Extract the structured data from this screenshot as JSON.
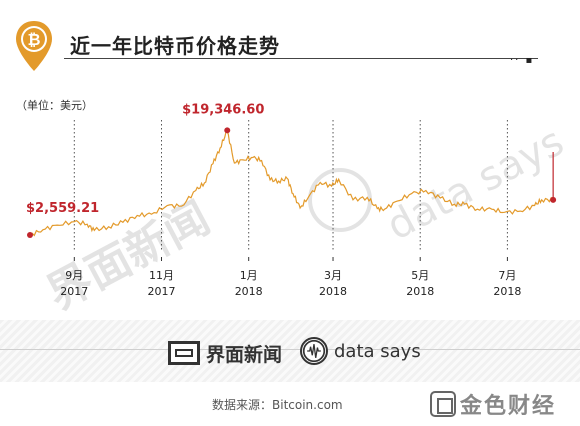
{
  "header": {
    "title": "近一年比特币价格走势",
    "unit_label": "（单位：美元）",
    "icon": "bitcoin-pin-icon",
    "accent_color": "#e39a2b"
  },
  "chart_data": {
    "type": "line",
    "title": "近一年比特币价格走势",
    "xlabel": "",
    "ylabel": "",
    "ylim": [
      0,
      21000
    ],
    "grid": "vertical dotted lines at labeled months",
    "line_color": "#e39a2b",
    "marker_color": "#c0262d",
    "x_ticks": [
      {
        "month": "9月",
        "year": "2017"
      },
      {
        "month": "11月",
        "year": "2017"
      },
      {
        "month": "1月",
        "year": "2018"
      },
      {
        "month": "3月",
        "year": "2018"
      },
      {
        "month": "5月",
        "year": "2018"
      },
      {
        "month": "7月",
        "year": "2018"
      }
    ],
    "annotations": [
      {
        "text": "$2,559.21",
        "date": "2017-08-01",
        "value": 2559.21
      },
      {
        "text": "$19,346.60",
        "date": "2017-12-17",
        "value": 19346.6
      }
    ],
    "series": [
      {
        "x": [
          "2017-08-01",
          "2017-08-10",
          "2017-08-20",
          "2017-09-01",
          "2017-09-10",
          "2017-09-15",
          "2017-09-25",
          "2017-10-05",
          "2017-10-15",
          "2017-10-25",
          "2017-11-05",
          "2017-11-15",
          "2017-11-25",
          "2017-12-01",
          "2017-12-07",
          "2017-12-12",
          "2017-12-17",
          "2017-12-22",
          "2017-12-28",
          "2018-01-04",
          "2018-01-10",
          "2018-01-16",
          "2018-01-22",
          "2018-01-28",
          "2018-02-01",
          "2018-02-06",
          "2018-02-12",
          "2018-02-20",
          "2018-02-28",
          "2018-03-05",
          "2018-03-15",
          "2018-03-25",
          "2018-04-01",
          "2018-04-06",
          "2018-04-15",
          "2018-04-25",
          "2018-05-05",
          "2018-05-15",
          "2018-05-25",
          "2018-06-01",
          "2018-06-10",
          "2018-06-20",
          "2018-06-29",
          "2018-07-10",
          "2018-07-20",
          "2018-07-25",
          "2018-08-02"
        ],
        "values": [
          2559.21,
          3400,
          4150,
          4700,
          4300,
          3300,
          3900,
          4600,
          5700,
          5900,
          7300,
          7200,
          9700,
          10900,
          14000,
          16500,
          19346.6,
          14100,
          14600,
          15000,
          14500,
          11400,
          11200,
          11600,
          9200,
          6900,
          8700,
          11000,
          10400,
          11500,
          8200,
          8600,
          6800,
          6700,
          8000,
          9200,
          9700,
          8500,
          7500,
          7500,
          6700,
          6700,
          6200,
          6400,
          7300,
          8200,
          8200
        ]
      }
    ]
  },
  "watermark": {
    "jiemian": "界面新闻",
    "datasays": "data says"
  },
  "footer": {
    "brand_left": "界面新闻",
    "brand_right": "data says",
    "source": "数据来源：Bitcoin.com",
    "corner_brand": "金色财经"
  }
}
